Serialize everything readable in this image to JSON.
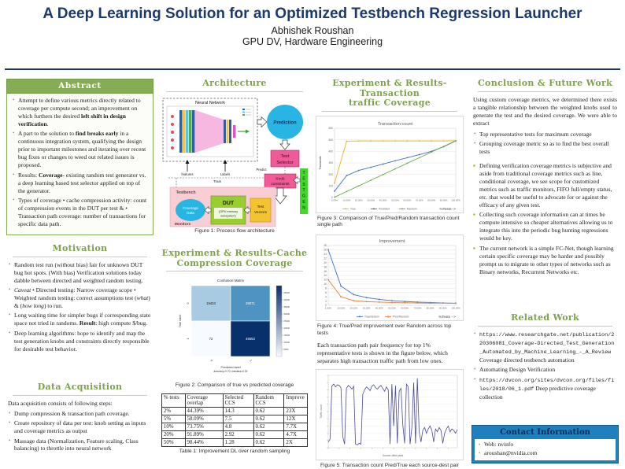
{
  "poster": {
    "title": "A Deep Learning Solution for an Optimized Testbench Regression Launcher",
    "author": "Abhishek Roushan",
    "affiliation": "GPU DV, Hardware Engineering"
  },
  "colors": {
    "title_navy": "#1b3a6b",
    "heading_green": "#7da24a",
    "abstract_bar_green": "#85ad55",
    "contact_blue": "#1f80c0",
    "nvidia_green": "#76b900"
  },
  "abstract": {
    "title": "Abstract",
    "items": [
      {
        "segs": [
          {
            "t": "Attempt to define various metrics directly related to coverage per compute second; an improvement on which furthers the desired ",
            "s": ""
          },
          {
            "t": "left shift in design verification",
            "s": "b"
          },
          {
            "t": ".",
            "s": ""
          }
        ]
      },
      {
        "segs": [
          {
            "t": "A part to the solution to ",
            "s": ""
          },
          {
            "t": "find breaks early",
            "s": "b"
          },
          {
            "t": " in a continuous integration system, qualifying the design prior to important milestones and iterating over recent bug fixes or changes to weed out related issues is proposed.",
            "s": ""
          }
        ]
      },
      {
        "segs": [
          {
            "t": "Results: ",
            "s": ""
          },
          {
            "t": "Coverage",
            "s": "b"
          },
          {
            "t": "- existing random test generator vs. a deep learning based test selector applied on top of the generator.",
            "s": ""
          }
        ]
      },
      {
        "segs": [
          {
            "t": "Types of coverage • cache compression activity: count of compression events in the DUT per test & • Transaction path coverage: number of transactions for specific data path.",
            "s": ""
          }
        ]
      }
    ]
  },
  "motivation": {
    "title": "Motivation",
    "items": [
      {
        "segs": [
          {
            "t": "Random test run (without bias) fair for unknown DUT bug hot spots. (With bias) Verification solutions today dabble between directed and weighted random testing.",
            "s": ""
          }
        ]
      },
      {
        "segs": [
          {
            "t": "Caveat",
            "s": "i"
          },
          {
            "t": " • Directed testing: Narrow coverage scope • Weighted random testing: correct assumptions test (",
            "s": ""
          },
          {
            "t": "what",
            "s": "i"
          },
          {
            "t": ") & (",
            "s": ""
          },
          {
            "t": "how long",
            "s": "i"
          },
          {
            "t": ") to run.",
            "s": ""
          }
        ]
      },
      {
        "segs": [
          {
            "t": "Long waiting time for simpler bugs if corresponding state space not tried in randoms. ",
            "s": ""
          },
          {
            "t": "Result",
            "s": "b"
          },
          {
            "t": ": high compute $/bug.",
            "s": ""
          }
        ]
      },
      {
        "segs": [
          {
            "t": "Deep learning algorithms: hope to identify and map the test generation knobs and constraints directly responsible for desirable test behavior.",
            "s": ""
          }
        ]
      }
    ]
  },
  "data_acquisition": {
    "title": "Data Acquisition",
    "intro": "Data acquisition consists of following steps:",
    "items": [
      {
        "segs": [
          {
            "t": "Dump compression & transaction path coverage.",
            "s": ""
          }
        ]
      },
      {
        "segs": [
          {
            "t": "Create repository of data per test: knob setting as inputs and coverage metrics as output",
            "s": ""
          }
        ]
      },
      {
        "segs": [
          {
            "t": "Massage data (Normalization, Feature scaling, Class balancing) to throttle into neural network",
            "s": ""
          }
        ]
      }
    ]
  },
  "architecture": {
    "title": "Architecture",
    "neural_network": "Neural Network",
    "prediction": "Prediction",
    "test_selector_1": "Test",
    "test_selector_2": "Selector",
    "knob_1": "Knob",
    "knob_2": "constraints",
    "testgen": "TESTGEN",
    "testbench": "Testbench",
    "coverage_1": "Coverage",
    "coverage_2": "Data",
    "monitors": "Monitors",
    "dut": "DUT",
    "dut_sub_1": "(GPU memory",
    "dut_sub_2": "subsystem)",
    "vectors_1": "Test",
    "vectors_2": "Vectors",
    "features": "features",
    "labels": "Labels",
    "predict": "Predict",
    "train": "Train"
  },
  "cache_section": {
    "title_1": "Experiment & Results-Cache",
    "title_2": "Compression Coverage"
  },
  "transaction_section": {
    "title_1": "Experiment & Results-Transaction",
    "title_2": "traffic Coverage",
    "paragraph": "Each transaction path pair frequency for top 1% representative tests is shown in the figure below, which separates high transaction traffic path from low ones."
  },
  "captions": {
    "fig1": "Figure 1: Process flow architecture",
    "fig2": "Figure 2: Comparison of true vs predicted coverage",
    "fig3": "Figure 3: Comparison of True/Pred/Random transaction count single path",
    "fig4": "Figure 4: True/Pred improvement over Random across top tests",
    "fig5": "Figure 5: Transaction count Pred/True each source-dest pair",
    "table": "Table 1: Improvement DL over random sampling"
  },
  "table": {
    "headers": [
      "% tests",
      "Coverage overlap",
      "Selected CCS",
      "Random CCS",
      "Improve"
    ],
    "rows": [
      [
        "2%",
        "44.39%",
        "14.3",
        "0.62",
        "23X"
      ],
      [
        "5%",
        "58.09%",
        "7.5",
        "0.62",
        "12X"
      ],
      [
        "10%",
        "73.75%",
        "4.8",
        "0.62",
        "7.7X"
      ],
      [
        "20%",
        "91.89%",
        "2.92",
        "0.62",
        "4.7X"
      ],
      [
        "50%",
        "98.44%",
        "1.28",
        "0.62",
        "2X"
      ]
    ]
  },
  "conclusion": {
    "title": "Conclusion & Future Work",
    "intro": "Using custom coverage metrics, we determined there exists a tangible relationship between the weighted knobs used to generate the test and the desired coverage. We were able to extract",
    "items": [
      {
        "segs": [
          {
            "t": "Top representative tests for maximum coverage",
            "s": ""
          }
        ]
      },
      {
        "segs": [
          {
            "t": "Grouping coverage metric so as to find the best overall tests",
            "s": ""
          }
        ]
      }
    ],
    "square_items": [
      {
        "segs": [
          {
            "t": "Defining verification coverage metrics is subjective and aside from traditional coverage metrics such as line, conditional coverage, we see scope for customized metrics such as traffic monitors, FIFO full/empty status, etc. that would be useful to advocate for or against the efficacy of any given test.",
            "s": ""
          }
        ]
      },
      {
        "segs": [
          {
            "t": "Collecting such coverage information can at times be compute intensive so cheaper alternatives allowing us to integrate this into the periodic bug hunting regressions would be key.",
            "s": ""
          }
        ]
      },
      {
        "segs": [
          {
            "t": "The current network is a simple FC-Net, though learning certain specific coverage may be harder and possibly prompt us to migrate to other types of networks such as Binary networks, Recurrent Networks etc.",
            "s": ""
          }
        ]
      }
    ]
  },
  "related": {
    "title": "Related Work",
    "items": [
      {
        "segs": [
          {
            "t": "https://www.researchgate.net/publication/220306081_Coverage-Directed_Test_Generation_Automated_by_Machine_Learning_-_A_Review",
            "s": "m"
          },
          {
            "t": " Coverage directed testbench automation",
            "s": ""
          }
        ]
      },
      {
        "segs": [
          {
            "t": "Automating Design Verification",
            "s": ""
          }
        ]
      },
      {
        "segs": [
          {
            "t": "https://dvcon.org/sites/dvcon.org/files/files/2018/06_1.pdf",
            "s": "m"
          },
          {
            "t": " Deep predictive coverage collection",
            "s": ""
          }
        ]
      }
    ]
  },
  "contact": {
    "title": "Contact Information",
    "items": [
      "Web: nvinfo",
      "aroushan@nvidia.com"
    ]
  },
  "chart_data": [
    {
      "key": "fig2",
      "type": "heatmap",
      "title": "Confusion Matrix",
      "xlabel": "Predicted label",
      "xlabel2": "accuracy=0.70; misclass=0.30",
      "ylabel": "True label",
      "x_labels": [
        "0",
        "1"
      ],
      "y_labels": [
        "0",
        "1"
      ],
      "cells": [
        [
          19433,
          28071
        ],
        [
          72,
          46553
        ]
      ],
      "cell_colors": [
        [
          "#a8cbe2",
          "#4f93c3"
        ],
        [
          "#f7fbff",
          "#08306b"
        ]
      ],
      "text_colors": [
        [
          "#1a1a1a",
          "#ffffff"
        ],
        [
          "#1a1a1a",
          "#ffffff"
        ]
      ],
      "colorbar_ticks": [
        "45000",
        "40000",
        "35000",
        "30000",
        "25000",
        "20000",
        "15000",
        "10000",
        "5000"
      ]
    },
    {
      "key": "fig3",
      "type": "line",
      "title": "Transaction count",
      "ylabel": "Thousands",
      "xlabel": "%Tests-->",
      "categories": [
        "0.00%",
        "10.00%",
        "20.00%",
        "30.00%",
        "40.00%",
        "50.00%",
        "60.00%",
        "70.00%",
        "80.00%",
        "90.00%",
        "100.00%"
      ],
      "ylim": [
        0,
        600
      ],
      "ytick": 100,
      "grid": true,
      "legend_position": "bottom",
      "series": [
        {
          "name": "True",
          "color": "#f2b31a",
          "values": [
            125,
            488,
            490,
            490,
            490,
            490,
            490,
            490,
            490,
            490,
            492
          ]
        },
        {
          "name": "Predicted",
          "color": "#4472c4",
          "values": [
            55,
            190,
            235,
            262,
            290,
            318,
            345,
            372,
            400,
            440,
            490
          ]
        },
        {
          "name": "Random",
          "color": "#70ad47",
          "values": [
            3,
            52,
            101,
            150,
            199,
            248,
            297,
            345,
            394,
            443,
            492
          ]
        }
      ]
    },
    {
      "key": "fig4",
      "type": "line",
      "title": "Improvement",
      "ylabel": "",
      "xlabel": "%Tests -->",
      "categories": [
        "1.00%",
        "10.00%",
        "20.00%",
        "30.00%",
        "40.00%",
        "50.00%",
        "60.00%",
        "70.00%",
        "80.00%",
        "90.00%",
        "100.00%"
      ],
      "ylim": [
        0,
        28
      ],
      "ytick": 2,
      "grid": true,
      "legend_position": "bottom",
      "series": [
        {
          "name": "True/random",
          "color": "#4472c4",
          "values": [
            26,
            9,
            5,
            3.6,
            2.8,
            2.2,
            1.8,
            1.5,
            1.3,
            1.1,
            1.0
          ]
        },
        {
          "name": "Pred/Random",
          "color": "#ed7d31",
          "values": [
            12,
            4,
            2.2,
            1.7,
            1.5,
            1.3,
            1.2,
            1.1,
            1.0,
            1.0,
            0.95
          ]
        }
      ]
    },
    {
      "key": "fig5",
      "type": "noise-line",
      "title": "",
      "ylabel": "Traffic count",
      "xlabel": "Source-dest pairs",
      "color": "#4a4a9c",
      "ylim": [
        0,
        100
      ],
      "ytick": 10,
      "values": [
        8,
        12,
        85,
        88,
        84,
        87,
        86,
        83,
        15,
        5,
        82,
        86,
        84,
        81,
        85,
        5,
        4,
        6,
        5,
        74,
        80,
        84,
        82,
        79,
        85,
        87,
        83,
        81,
        84,
        86,
        82,
        78,
        84,
        80,
        5,
        88,
        30,
        86,
        6,
        78,
        82,
        32,
        6,
        88,
        84,
        5,
        28,
        90,
        6,
        96,
        22,
        8,
        24,
        28,
        20,
        26,
        30,
        24,
        8,
        26,
        22,
        28,
        24,
        6,
        20,
        26,
        30,
        22,
        26,
        24,
        20,
        25
      ]
    }
  ]
}
